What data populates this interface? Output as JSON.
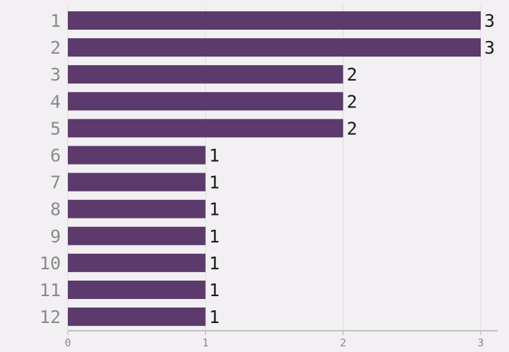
{
  "chart_data": {
    "type": "bar",
    "orientation": "horizontal",
    "categories": [
      "1",
      "2",
      "3",
      "4",
      "5",
      "6",
      "7",
      "8",
      "9",
      "10",
      "11",
      "12"
    ],
    "values": [
      3,
      3,
      2,
      2,
      2,
      1,
      1,
      1,
      1,
      1,
      1,
      1
    ],
    "xlim": [
      0,
      3
    ],
    "xticks": [
      "0",
      "1",
      "2",
      "3"
    ],
    "grid": true,
    "title": "",
    "xlabel": "",
    "ylabel": "",
    "colors": {
      "bar": "#5c3a6b",
      "background": "#f3f0f4",
      "grid": "#dcdcdc",
      "axis": "#b0b0b0"
    }
  }
}
